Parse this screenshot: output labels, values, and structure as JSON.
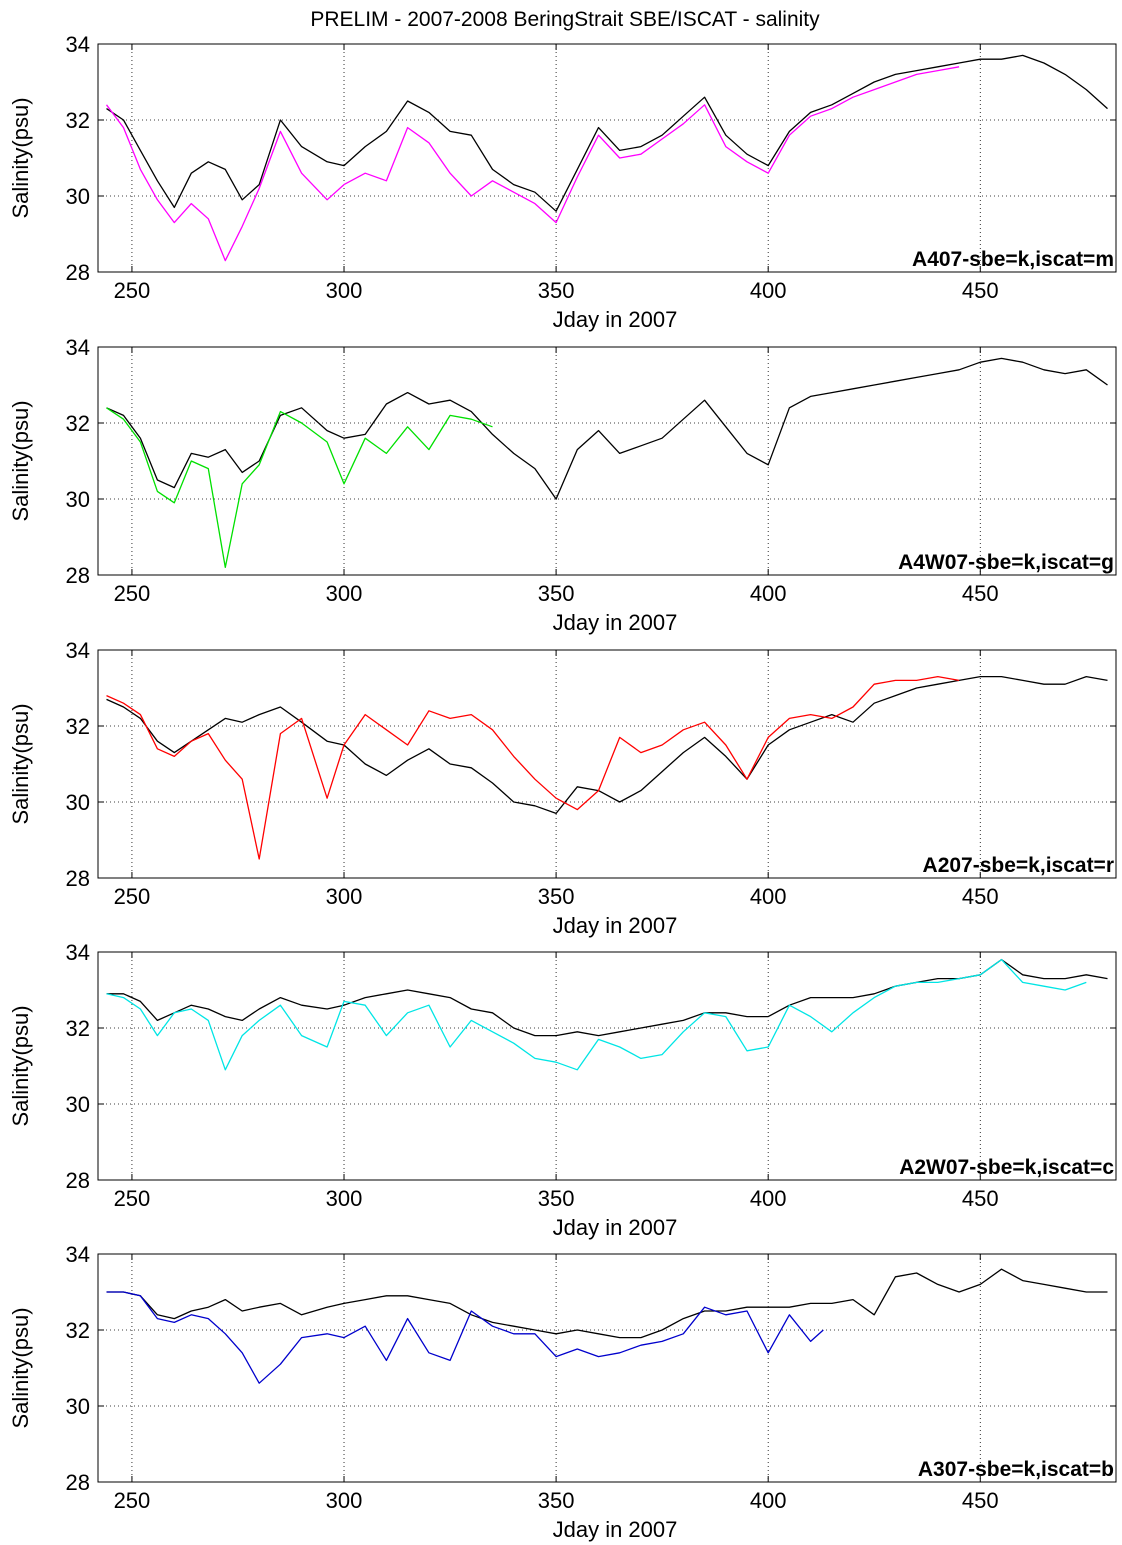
{
  "figure": {
    "title": "PRELIM - 2007-2008 BeringStrait SBE/ISCAT - salinity"
  },
  "chart_data": [
    {
      "type": "line",
      "annotation": "A407-sbe=k,iscat=m",
      "xlabel": "Jday in 2007",
      "ylabel": "Salinity(psu)",
      "xlim": [
        242,
        482
      ],
      "ylim": [
        28,
        34
      ],
      "xticks": [
        250,
        300,
        350,
        400,
        450
      ],
      "yticks": [
        28,
        30,
        32,
        34
      ],
      "grid": true,
      "series": [
        {
          "color": "#000000",
          "x": [
            244,
            248,
            252,
            256,
            260,
            264,
            268,
            272,
            276,
            280,
            285,
            290,
            296,
            300,
            305,
            310,
            315,
            320,
            325,
            330,
            335,
            340,
            345,
            350,
            355,
            360,
            365,
            370,
            375,
            380,
            385,
            390,
            395,
            400,
            405,
            410,
            415,
            420,
            425,
            430,
            435,
            440,
            445,
            450,
            455,
            460,
            465,
            470,
            475,
            480
          ],
          "y": [
            32.3,
            32.0,
            31.2,
            30.4,
            29.7,
            30.6,
            30.9,
            30.7,
            29.9,
            30.3,
            32.0,
            31.3,
            30.9,
            30.8,
            31.3,
            31.7,
            32.5,
            32.2,
            31.7,
            31.6,
            30.7,
            30.3,
            30.1,
            29.6,
            30.7,
            31.8,
            31.2,
            31.3,
            31.6,
            32.1,
            32.6,
            31.6,
            31.1,
            30.8,
            31.7,
            32.2,
            32.4,
            32.7,
            33.0,
            33.2,
            33.3,
            33.4,
            33.5,
            33.6,
            33.6,
            33.7,
            33.5,
            33.2,
            32.8,
            32.3
          ]
        },
        {
          "color": "#ff00ff",
          "x": [
            244,
            248,
            252,
            256,
            260,
            264,
            268,
            272,
            276,
            280,
            285,
            290,
            296,
            300,
            305,
            310,
            315,
            320,
            325,
            330,
            335,
            340,
            345,
            350,
            355,
            360,
            365,
            370,
            375,
            380,
            385,
            390,
            395,
            400,
            405,
            410,
            415,
            420,
            425,
            430,
            435,
            440,
            445
          ],
          "y": [
            32.4,
            31.8,
            30.7,
            29.9,
            29.3,
            29.8,
            29.4,
            28.3,
            29.2,
            30.2,
            31.7,
            30.6,
            29.9,
            30.3,
            30.6,
            30.4,
            31.8,
            31.4,
            30.6,
            30.0,
            30.4,
            30.1,
            29.8,
            29.3,
            30.5,
            31.6,
            31.0,
            31.1,
            31.5,
            31.9,
            32.4,
            31.3,
            30.9,
            30.6,
            31.6,
            32.1,
            32.3,
            32.6,
            32.8,
            33.0,
            33.2,
            33.3,
            33.4
          ]
        }
      ]
    },
    {
      "type": "line",
      "annotation": "A4W07-sbe=k,iscat=g",
      "xlabel": "Jday in 2007",
      "ylabel": "Salinity(psu)",
      "xlim": [
        242,
        482
      ],
      "ylim": [
        28,
        34
      ],
      "xticks": [
        250,
        300,
        350,
        400,
        450
      ],
      "yticks": [
        28,
        30,
        32,
        34
      ],
      "grid": true,
      "series": [
        {
          "color": "#000000",
          "x": [
            244,
            248,
            252,
            256,
            260,
            264,
            268,
            272,
            276,
            280,
            285,
            290,
            296,
            300,
            305,
            310,
            315,
            320,
            325,
            330,
            335,
            340,
            345,
            350,
            355,
            360,
            365,
            370,
            375,
            380,
            385,
            390,
            395,
            400,
            405,
            410,
            415,
            420,
            425,
            430,
            435,
            440,
            445,
            450,
            455,
            460,
            465,
            470,
            475,
            480
          ],
          "y": [
            32.4,
            32.2,
            31.6,
            30.5,
            30.3,
            31.2,
            31.1,
            31.3,
            30.7,
            31.0,
            32.2,
            32.4,
            31.8,
            31.6,
            31.7,
            32.5,
            32.8,
            32.5,
            32.6,
            32.3,
            31.7,
            31.2,
            30.8,
            30.0,
            31.3,
            31.8,
            31.2,
            31.4,
            31.6,
            32.1,
            32.6,
            31.9,
            31.2,
            30.9,
            32.4,
            32.7,
            32.8,
            32.9,
            33.0,
            33.1,
            33.2,
            33.3,
            33.4,
            33.6,
            33.7,
            33.6,
            33.4,
            33.3,
            33.4,
            33.0
          ]
        },
        {
          "color": "#00e000",
          "x": [
            244,
            248,
            252,
            256,
            260,
            264,
            268,
            272,
            276,
            280,
            285,
            290,
            296,
            300,
            305,
            310,
            315,
            320,
            325,
            330,
            335
          ],
          "y": [
            32.4,
            32.1,
            31.5,
            30.2,
            29.9,
            31.0,
            30.8,
            28.2,
            30.4,
            30.9,
            32.3,
            32.0,
            31.5,
            30.4,
            31.6,
            31.2,
            31.9,
            31.3,
            32.2,
            32.1,
            31.9
          ]
        }
      ]
    },
    {
      "type": "line",
      "annotation": "A207-sbe=k,iscat=r",
      "xlabel": "Jday in 2007",
      "ylabel": "Salinity(psu)",
      "xlim": [
        242,
        482
      ],
      "ylim": [
        28,
        34
      ],
      "xticks": [
        250,
        300,
        350,
        400,
        450
      ],
      "yticks": [
        28,
        30,
        32,
        34
      ],
      "grid": true,
      "series": [
        {
          "color": "#000000",
          "x": [
            244,
            248,
            252,
            256,
            260,
            264,
            268,
            272,
            276,
            280,
            285,
            290,
            296,
            300,
            305,
            310,
            315,
            320,
            325,
            330,
            335,
            340,
            345,
            350,
            355,
            360,
            365,
            370,
            375,
            380,
            385,
            390,
            395,
            400,
            405,
            410,
            415,
            420,
            425,
            430,
            435,
            440,
            445,
            450,
            455,
            460,
            465,
            470,
            475,
            480
          ],
          "y": [
            32.7,
            32.5,
            32.2,
            31.6,
            31.3,
            31.6,
            31.9,
            32.2,
            32.1,
            32.3,
            32.5,
            32.1,
            31.6,
            31.5,
            31.0,
            30.7,
            31.1,
            31.4,
            31.0,
            30.9,
            30.5,
            30.0,
            29.9,
            29.7,
            30.4,
            30.3,
            30.0,
            30.3,
            30.8,
            31.3,
            31.7,
            31.2,
            30.6,
            31.5,
            31.9,
            32.1,
            32.3,
            32.1,
            32.6,
            32.8,
            33.0,
            33.1,
            33.2,
            33.3,
            33.3,
            33.2,
            33.1,
            33.1,
            33.3,
            33.2
          ]
        },
        {
          "color": "#ff0000",
          "x": [
            244,
            248,
            252,
            256,
            260,
            264,
            268,
            272,
            276,
            280,
            285,
            290,
            296,
            300,
            305,
            310,
            315,
            320,
            325,
            330,
            335,
            340,
            345,
            350,
            355,
            360,
            365,
            370,
            375,
            380,
            385,
            390,
            395,
            400,
            405,
            410,
            415,
            420,
            425,
            430,
            435,
            440,
            445
          ],
          "y": [
            32.8,
            32.6,
            32.3,
            31.4,
            31.2,
            31.6,
            31.8,
            31.1,
            30.6,
            28.5,
            31.8,
            32.2,
            30.1,
            31.5,
            32.3,
            31.9,
            31.5,
            32.4,
            32.2,
            32.3,
            31.9,
            31.2,
            30.6,
            30.1,
            29.8,
            30.3,
            31.7,
            31.3,
            31.5,
            31.9,
            32.1,
            31.5,
            30.6,
            31.7,
            32.2,
            32.3,
            32.2,
            32.5,
            33.1,
            33.2,
            33.2,
            33.3,
            33.2
          ]
        }
      ]
    },
    {
      "type": "line",
      "annotation": "A2W07-sbe=k,iscat=c",
      "xlabel": "Jday in 2007",
      "ylabel": "Salinity(psu)",
      "xlim": [
        242,
        482
      ],
      "ylim": [
        28,
        34
      ],
      "xticks": [
        250,
        300,
        350,
        400,
        450
      ],
      "yticks": [
        28,
        30,
        32,
        34
      ],
      "grid": true,
      "series": [
        {
          "color": "#000000",
          "x": [
            244,
            248,
            252,
            256,
            260,
            264,
            268,
            272,
            276,
            280,
            285,
            290,
            296,
            300,
            305,
            310,
            315,
            320,
            325,
            330,
            335,
            340,
            345,
            350,
            355,
            360,
            365,
            370,
            375,
            380,
            385,
            390,
            395,
            400,
            405,
            410,
            415,
            420,
            425,
            430,
            435,
            440,
            445,
            450,
            455,
            460,
            465,
            470,
            475,
            480
          ],
          "y": [
            32.9,
            32.9,
            32.7,
            32.2,
            32.4,
            32.6,
            32.5,
            32.3,
            32.2,
            32.5,
            32.8,
            32.6,
            32.5,
            32.6,
            32.8,
            32.9,
            33.0,
            32.9,
            32.8,
            32.5,
            32.4,
            32.0,
            31.8,
            31.8,
            31.9,
            31.8,
            31.9,
            32.0,
            32.1,
            32.2,
            32.4,
            32.4,
            32.3,
            32.3,
            32.6,
            32.8,
            32.8,
            32.8,
            32.9,
            33.1,
            33.2,
            33.3,
            33.3,
            33.4,
            33.8,
            33.4,
            33.3,
            33.3,
            33.4,
            33.3
          ]
        },
        {
          "color": "#00e5e5",
          "x": [
            244,
            248,
            252,
            256,
            260,
            264,
            268,
            272,
            276,
            280,
            285,
            290,
            296,
            300,
            305,
            310,
            315,
            320,
            325,
            330,
            335,
            340,
            345,
            350,
            355,
            360,
            365,
            370,
            375,
            380,
            385,
            390,
            395,
            400,
            405,
            410,
            415,
            420,
            425,
            430,
            435,
            440,
            445,
            450,
            455,
            460,
            465,
            470,
            475
          ],
          "y": [
            32.9,
            32.8,
            32.5,
            31.8,
            32.4,
            32.5,
            32.2,
            30.9,
            31.8,
            32.2,
            32.6,
            31.8,
            31.5,
            32.7,
            32.6,
            31.8,
            32.4,
            32.6,
            31.5,
            32.2,
            31.9,
            31.6,
            31.2,
            31.1,
            30.9,
            31.7,
            31.5,
            31.2,
            31.3,
            31.9,
            32.4,
            32.3,
            31.4,
            31.5,
            32.6,
            32.3,
            31.9,
            32.4,
            32.8,
            33.1,
            33.2,
            33.2,
            33.3,
            33.4,
            33.8,
            33.2,
            33.1,
            33.0,
            33.2
          ]
        }
      ]
    },
    {
      "type": "line",
      "annotation": "A307-sbe=k,iscat=b",
      "xlabel": "Jday in 2007",
      "ylabel": "Salinity(psu)",
      "xlim": [
        242,
        482
      ],
      "ylim": [
        28,
        34
      ],
      "xticks": [
        250,
        300,
        350,
        400,
        450
      ],
      "yticks": [
        28,
        30,
        32,
        34
      ],
      "grid": true,
      "series": [
        {
          "color": "#000000",
          "x": [
            244,
            248,
            252,
            256,
            260,
            264,
            268,
            272,
            276,
            280,
            285,
            290,
            296,
            300,
            305,
            310,
            315,
            320,
            325,
            330,
            335,
            340,
            345,
            350,
            355,
            360,
            365,
            370,
            375,
            380,
            385,
            390,
            395,
            400,
            405,
            410,
            415,
            420,
            425,
            430,
            435,
            440,
            445,
            450,
            455,
            460,
            465,
            470,
            475,
            480
          ],
          "y": [
            33.0,
            33.0,
            32.9,
            32.4,
            32.3,
            32.5,
            32.6,
            32.8,
            32.5,
            32.6,
            32.7,
            32.4,
            32.6,
            32.7,
            32.8,
            32.9,
            32.9,
            32.8,
            32.7,
            32.4,
            32.2,
            32.1,
            32.0,
            31.9,
            32.0,
            31.9,
            31.8,
            31.8,
            32.0,
            32.3,
            32.5,
            32.5,
            32.6,
            32.6,
            32.6,
            32.7,
            32.7,
            32.8,
            32.4,
            33.4,
            33.5,
            33.2,
            33.0,
            33.2,
            33.6,
            33.3,
            33.2,
            33.1,
            33.0,
            33.0
          ]
        },
        {
          "color": "#0000cc",
          "x": [
            244,
            248,
            252,
            256,
            260,
            264,
            268,
            272,
            276,
            280,
            285,
            290,
            296,
            300,
            305,
            310,
            315,
            320,
            325,
            330,
            335,
            340,
            345,
            350,
            355,
            360,
            365,
            370,
            375,
            380,
            385,
            390,
            395,
            400,
            405,
            410,
            413
          ],
          "y": [
            33.0,
            33.0,
            32.9,
            32.3,
            32.2,
            32.4,
            32.3,
            31.9,
            31.4,
            30.6,
            31.1,
            31.8,
            31.9,
            31.8,
            32.1,
            31.2,
            32.3,
            31.4,
            31.2,
            32.5,
            32.1,
            31.9,
            31.9,
            31.3,
            31.5,
            31.3,
            31.4,
            31.6,
            31.7,
            31.9,
            32.6,
            32.4,
            32.5,
            31.4,
            32.4,
            31.7,
            32.0
          ]
        }
      ]
    }
  ]
}
